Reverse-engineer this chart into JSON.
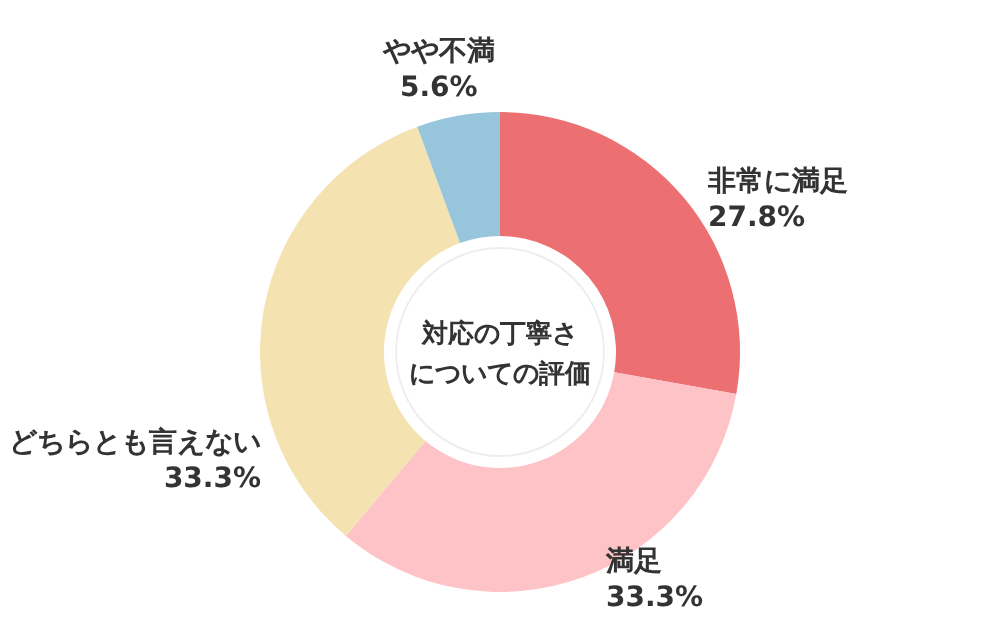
{
  "chart_data": {
    "type": "donut",
    "title": "対応の丁寧さについての評価",
    "categories": [
      "非常に満足",
      "満足",
      "どちらとも言えない",
      "やや不満"
    ],
    "values": [
      27.8,
      33.3,
      33.3,
      5.6
    ],
    "value_labels": [
      "27.8%",
      "33.3%",
      "33.3%",
      "5.6%"
    ],
    "colors": [
      "#ec7072",
      "#fdc3c6",
      "#f5e2b1",
      "#97c5dc"
    ]
  }
}
